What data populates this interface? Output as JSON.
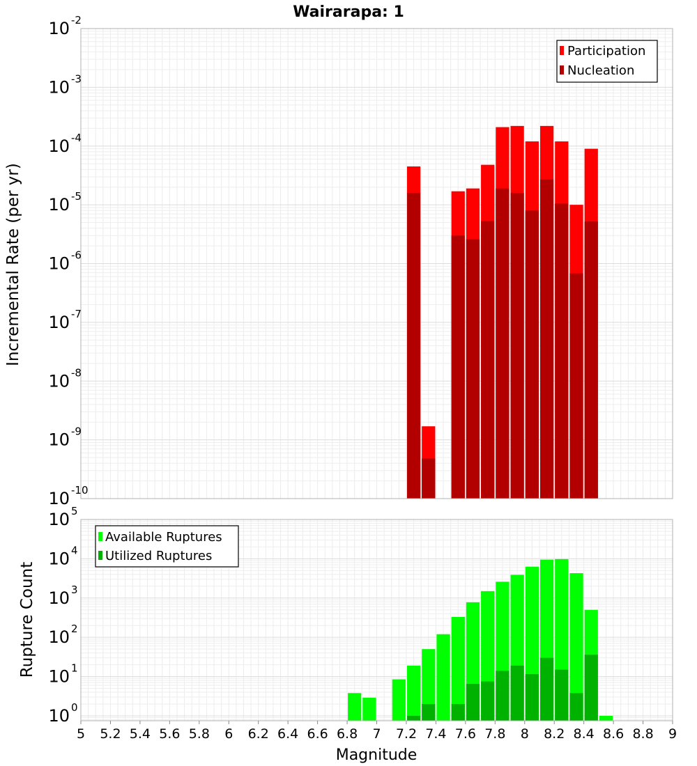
{
  "chart_data": [
    {
      "type": "bar",
      "title": "Wairarapa: 1",
      "xlabel": "Magnitude",
      "ylabel": "Incremental Rate (per yr)",
      "yscale": "log",
      "xlim": [
        5,
        9
      ],
      "ylim": [
        1e-10,
        0.01
      ],
      "y_ticks": [
        {
          "base": "10",
          "exp": "-10",
          "value": 1e-10
        },
        {
          "base": "10",
          "exp": "-9",
          "value": 1e-09
        },
        {
          "base": "10",
          "exp": "-8",
          "value": 1e-08
        },
        {
          "base": "10",
          "exp": "-7",
          "value": 1e-07
        },
        {
          "base": "10",
          "exp": "-6",
          "value": 1e-06
        },
        {
          "base": "10",
          "exp": "-5",
          "value": 1e-05
        },
        {
          "base": "10",
          "exp": "-4",
          "value": 0.0001
        },
        {
          "base": "10",
          "exp": "-3",
          "value": 0.001
        },
        {
          "base": "10",
          "exp": "-2",
          "value": 0.01
        }
      ],
      "grid": true,
      "legend_position": "top-right",
      "x": [
        7.25,
        7.35,
        7.55,
        7.65,
        7.75,
        7.85,
        7.95,
        8.05,
        8.15,
        8.25,
        8.35,
        8.45
      ],
      "series": [
        {
          "name": "Participation",
          "color": "#ff0000",
          "values": [
            4.5e-05,
            1.7e-09,
            1.7e-05,
            1.9e-05,
            4.8e-05,
            0.00021,
            0.00022,
            0.00012,
            0.00022,
            0.00012,
            1e-05,
            9e-05
          ]
        },
        {
          "name": "Nucleation",
          "color": "#b20000",
          "values": [
            1.6e-05,
            4.8e-10,
            3e-06,
            2.6e-06,
            5.3e-06,
            1.9e-05,
            1.6e-05,
            8e-06,
            2.7e-05,
            1.05e-05,
            6.8e-07,
            5.2e-06
          ]
        }
      ]
    },
    {
      "type": "bar",
      "xlabel": "Magnitude",
      "ylabel": "Rupture Count",
      "yscale": "log",
      "xlim": [
        5,
        9
      ],
      "ylim": [
        0.75,
        100000.0
      ],
      "y_ticks": [
        {
          "base": "10",
          "exp": "0",
          "value": 1
        },
        {
          "base": "10",
          "exp": "1",
          "value": 10
        },
        {
          "base": "10",
          "exp": "2",
          "value": 100
        },
        {
          "base": "10",
          "exp": "3",
          "value": 1000
        },
        {
          "base": "10",
          "exp": "4",
          "value": 10000
        },
        {
          "base": "10",
          "exp": "5",
          "value": 100000
        }
      ],
      "x_tick_labels": [
        "5",
        "5.2",
        "5.4",
        "5.6",
        "5.8",
        "6",
        "6.2",
        "6.4",
        "6.6",
        "6.8",
        "7",
        "7.2",
        "7.4",
        "7.6",
        "7.8",
        "8",
        "8.2",
        "8.4",
        "8.6",
        "8.8",
        "9"
      ],
      "grid": true,
      "legend_position": "top-left",
      "x": [
        6.85,
        6.95,
        7.15,
        7.25,
        7.35,
        7.45,
        7.55,
        7.65,
        7.75,
        7.85,
        7.95,
        8.05,
        8.15,
        8.25,
        8.35,
        8.45,
        8.55
      ],
      "series": [
        {
          "name": "Available Ruptures",
          "color": "#00ff00",
          "values": [
            3.8,
            2.9,
            8.5,
            19,
            50,
            120,
            330,
            780,
            1500,
            2600,
            3900,
            6300,
            9500,
            9800,
            4300,
            500,
            1
          ]
        },
        {
          "name": "Utilized Ruptures",
          "color": "#00b200",
          "values": [
            0,
            0,
            0,
            1,
            2,
            0,
            2,
            6.5,
            7.5,
            14,
            19,
            11.5,
            30,
            15,
            3.8,
            36,
            0
          ]
        }
      ]
    }
  ]
}
